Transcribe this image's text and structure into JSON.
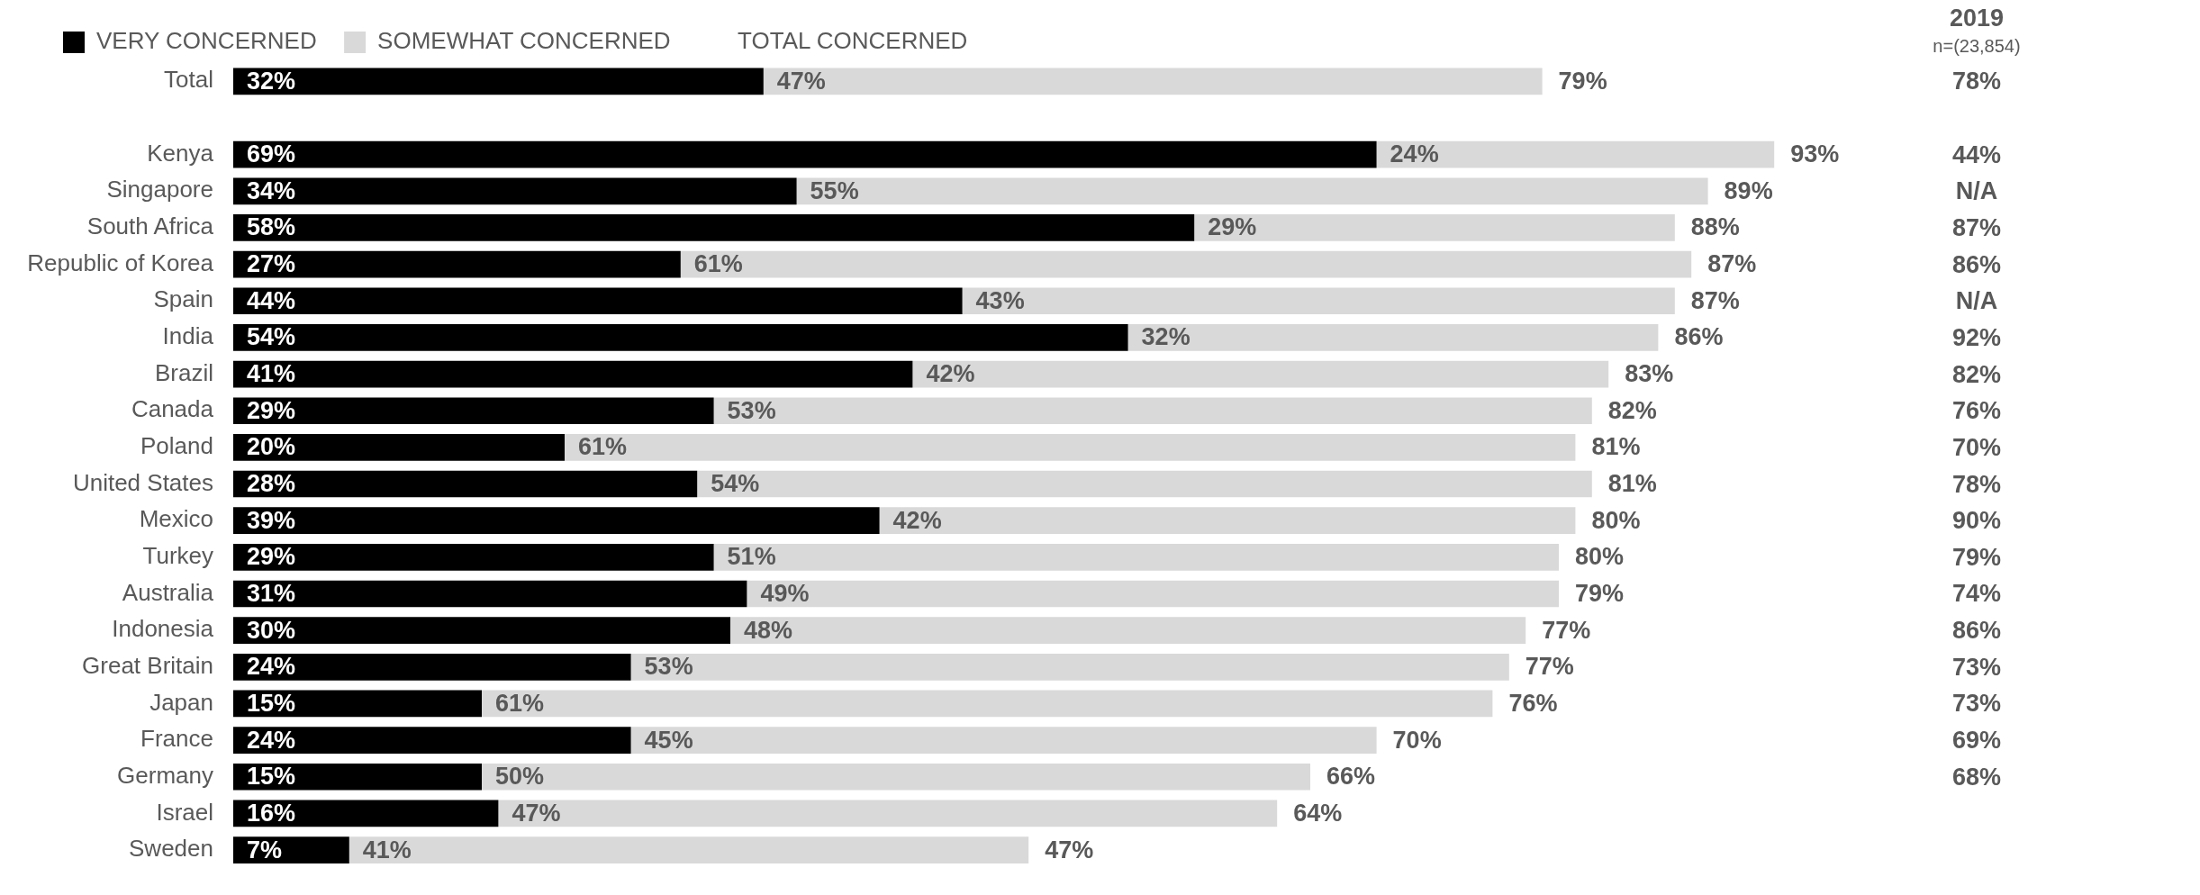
{
  "chart_data": [
    {
      "type": "bar",
      "orientation": "horizontal",
      "stacked": true,
      "categories": [
        "Total",
        "Kenya",
        "Singapore",
        "South Africa",
        "Republic of Korea",
        "Spain",
        "India",
        "Brazil",
        "Canada",
        "Poland",
        "United States",
        "Mexico",
        "Turkey",
        "Australia",
        "Indonesia",
        "Great Britain",
        "Japan",
        "France",
        "Germany",
        "Israel",
        "Sweden"
      ],
      "series": [
        {
          "name": "VERY CONCERNED",
          "color": "#000000",
          "values": [
            32,
            69,
            34,
            58,
            27,
            44,
            54,
            41,
            29,
            20,
            28,
            39,
            29,
            31,
            30,
            24,
            15,
            24,
            15,
            16,
            7
          ],
          "value_labels": [
            "32%",
            "69%",
            "34%",
            "58%",
            "27%",
            "44%",
            "54%",
            "41%",
            "29%",
            "20%",
            "28%",
            "39%",
            "29%",
            "31%",
            "30%",
            "24%",
            "15%",
            "24%",
            "15%",
            "16%",
            "7%"
          ]
        },
        {
          "name": "SOMEWHAT CONCERNED",
          "color": "#d9d9d9",
          "values": [
            47,
            24,
            55,
            29,
            61,
            43,
            32,
            42,
            53,
            61,
            54,
            42,
            51,
            49,
            48,
            53,
            61,
            45,
            50,
            47,
            41
          ],
          "value_labels": [
            "47%",
            "24%",
            "55%",
            "29%",
            "61%",
            "43%",
            "32%",
            "42%",
            "53%",
            "61%",
            "54%",
            "42%",
            "51%",
            "49%",
            "48%",
            "53%",
            "61%",
            "45%",
            "50%",
            "47%",
            "41%"
          ]
        }
      ],
      "totals": [
        "79%",
        "93%",
        "89%",
        "88%",
        "87%",
        "87%",
        "86%",
        "83%",
        "82%",
        "81%",
        "81%",
        "80%",
        "80%",
        "79%",
        "77%",
        "77%",
        "76%",
        "70%",
        "66%",
        "64%",
        "47%"
      ],
      "annotations": [
        "TOTAL CONCERNED"
      ],
      "tick_labels": "y",
      "legend": "top left"
    },
    {
      "type": "other",
      "title": "2019",
      "subtitle": "n=(23,854)",
      "values": [
        78,
        44,
        null,
        87,
        86,
        null,
        92,
        82,
        76,
        70,
        78,
        90,
        79,
        74,
        86,
        73,
        73,
        69,
        68,
        null,
        null
      ],
      "value_labels": [
        "78%",
        "44%",
        "N/A",
        "87%",
        "86%",
        "N/A",
        "92%",
        "82%",
        "76%",
        "70%",
        "78%",
        "90%",
        "79%",
        "74%",
        "86%",
        "73%",
        "73%",
        "69%",
        "68%",
        null,
        null
      ]
    }
  ]
}
